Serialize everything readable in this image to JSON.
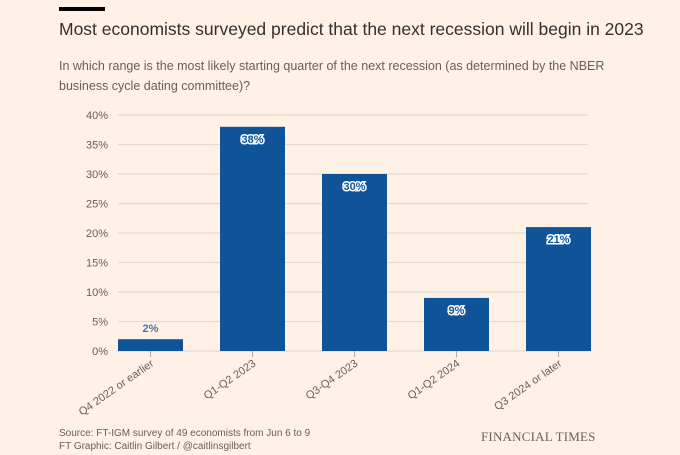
{
  "header": {
    "title": "Most economists surveyed predict that the next recession will begin in 2023",
    "subtitle": "In which range is the most likely starting quarter of the next recession (as determined by the NBER business cycle dating committee)?"
  },
  "footer": {
    "source": "Source: FT-IGM survey of 49 economists from Jun 6 to 9",
    "credit": "FT Graphic: Caitlin Gilbert / @caitlinsgilbert",
    "brand": "FINANCIAL TIMES"
  },
  "colors": {
    "background": "#fff1e5",
    "bar": "#0f5499",
    "grid": "#e6d9ce",
    "text": "#66605c"
  },
  "chart_data": {
    "type": "bar",
    "title": "Most economists surveyed predict that the next recession will begin in 2023",
    "xlabel": "",
    "ylabel": "",
    "categories": [
      "Q4 2022 or earlier",
      "Q1-Q2 2023",
      "Q3-Q4 2023",
      "Q1-Q2 2024",
      "Q3 2024 or later"
    ],
    "values": [
      2,
      38,
      30,
      9,
      21
    ],
    "data_labels": [
      "2%",
      "38%",
      "30%",
      "9%",
      "21%"
    ],
    "ylim": [
      0,
      40
    ],
    "yticks": [
      0,
      5,
      10,
      15,
      20,
      25,
      30,
      35,
      40
    ],
    "ytick_labels": [
      "0%",
      "5%",
      "10%",
      "15%",
      "20%",
      "25%",
      "30%",
      "35%",
      "40%"
    ],
    "grid": true,
    "legend": "none"
  }
}
